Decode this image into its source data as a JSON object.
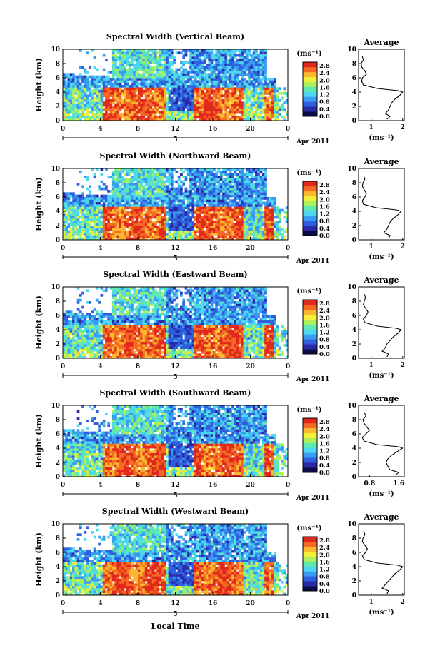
{
  "colorbar": {
    "unit": "(ms⁻¹)",
    "ticks": [
      "0.0",
      "0.4",
      "0.8",
      "1.2",
      "1.6",
      "2.0",
      "2.4",
      "2.8"
    ],
    "colors": [
      "#0b0b4a",
      "#2a2aa8",
      "#2f5fdc",
      "#3a9cf0",
      "#4ed8f0",
      "#5fe8b0",
      "#aef05a",
      "#f4f03a",
      "#f8b830",
      "#f46a24",
      "#e0281c"
    ]
  },
  "common": {
    "xticks": [
      "0",
      "4",
      "8",
      "12",
      "16",
      "20",
      "0"
    ],
    "date_mark": "5",
    "date_label": "Apr 2011",
    "ylabel": "Height (km)",
    "yticks": [
      "0",
      "2",
      "4",
      "6",
      "8",
      "10"
    ],
    "avg_title": "Average",
    "avg_unit": "(ms⁻¹)",
    "xlabel": "Local Time"
  },
  "panels": [
    {
      "title": "Spectral Width (Vertical Beam)",
      "avg_xticks": [
        "1",
        "2"
      ]
    },
    {
      "title": "Spectral Width (Northward Beam)",
      "avg_xticks": [
        "1",
        "2"
      ]
    },
    {
      "title": "Spectral Width (Eastward Beam)",
      "avg_xticks": [
        "1",
        "2"
      ]
    },
    {
      "title": "Spectral Width (Southward Beam)",
      "avg_xticks": [
        "0.8",
        "1.6"
      ]
    },
    {
      "title": "Spectral Width (Westward Beam)",
      "avg_xticks": [
        "1",
        "2"
      ]
    }
  ],
  "chart_data": [
    {
      "type": "heatmap",
      "title": "Spectral Width (Vertical Beam)",
      "xlabel": "",
      "ylabel": "Height (km)",
      "xlim": [
        0,
        24
      ],
      "ylim": [
        0,
        10
      ],
      "colorbar_range": [
        0,
        3.0
      ],
      "average_profile": {
        "title": "Average",
        "xlabel": "(ms⁻¹)",
        "xlim": [
          0.6,
          2.05
        ],
        "height_km": [
          0.2,
          0.6,
          1.0,
          1.5,
          2.0,
          2.5,
          3.0,
          3.5,
          4.0,
          4.2,
          4.5,
          5.0,
          5.5,
          6.0,
          6.5,
          7.0,
          7.5,
          8.0,
          8.5,
          9.0
        ],
        "width": [
          1.5,
          1.6,
          1.45,
          1.55,
          1.6,
          1.65,
          1.75,
          1.9,
          2.0,
          1.85,
          1.2,
          0.75,
          0.7,
          0.72,
          0.85,
          0.8,
          0.7,
          0.68,
          0.75,
          0.72
        ]
      }
    },
    {
      "type": "heatmap",
      "title": "Spectral Width (Northward Beam)",
      "xlabel": "",
      "ylabel": "Height (km)",
      "xlim": [
        0,
        24
      ],
      "ylim": [
        0,
        10
      ],
      "colorbar_range": [
        0,
        3.0
      ],
      "average_profile": {
        "title": "Average",
        "xlabel": "(ms⁻¹)",
        "xlim": [
          0.6,
          2.05
        ],
        "height_km": [
          0.2,
          0.6,
          1.0,
          1.5,
          2.0,
          2.5,
          3.0,
          3.5,
          4.0,
          4.2,
          4.5,
          5.0,
          5.5,
          6.0,
          6.5,
          7.0,
          7.5,
          8.0,
          8.5,
          9.0
        ],
        "width": [
          1.55,
          1.6,
          1.4,
          1.5,
          1.55,
          1.6,
          1.7,
          1.85,
          1.95,
          1.8,
          1.15,
          0.75,
          0.72,
          0.8,
          0.85,
          0.78,
          0.72,
          0.74,
          0.8,
          0.76
        ]
      }
    },
    {
      "type": "heatmap",
      "title": "Spectral Width (Eastward Beam)",
      "xlabel": "",
      "ylabel": "Height (km)",
      "xlim": [
        0,
        24
      ],
      "ylim": [
        0,
        10
      ],
      "colorbar_range": [
        0,
        3.0
      ],
      "average_profile": {
        "title": "Average",
        "xlabel": "(ms⁻¹)",
        "xlim": [
          0.6,
          2.05
        ],
        "height_km": [
          0.2,
          0.6,
          1.0,
          1.5,
          2.0,
          2.5,
          3.0,
          3.5,
          4.0,
          4.2,
          4.5,
          5.0,
          5.5,
          6.0,
          6.5,
          7.0,
          7.5,
          8.0,
          8.5,
          9.0
        ],
        "width": [
          1.5,
          1.55,
          1.35,
          1.45,
          1.5,
          1.6,
          1.7,
          1.85,
          1.95,
          1.8,
          1.2,
          0.8,
          0.75,
          0.85,
          0.9,
          0.82,
          0.75,
          0.78,
          0.82,
          0.78
        ]
      }
    },
    {
      "type": "heatmap",
      "title": "Spectral Width (Southward Beam)",
      "xlabel": "",
      "ylabel": "Height (km)",
      "xlim": [
        0,
        24
      ],
      "ylim": [
        0,
        10
      ],
      "colorbar_range": [
        0,
        3.0
      ],
      "average_profile": {
        "title": "Average",
        "xlabel": "(ms⁻¹)",
        "xlim": [
          0.5,
          1.75
        ],
        "height_km": [
          0.2,
          0.6,
          1.0,
          1.5,
          2.0,
          2.5,
          3.0,
          3.5,
          4.0,
          4.2,
          4.5,
          5.0,
          5.5,
          6.0,
          6.5,
          7.0,
          7.5,
          8.0,
          8.5,
          9.0
        ],
        "width": [
          1.5,
          1.6,
          1.35,
          1.3,
          1.25,
          1.3,
          1.4,
          1.55,
          1.7,
          1.6,
          1.0,
          0.65,
          0.6,
          0.7,
          0.8,
          0.72,
          0.65,
          0.62,
          0.7,
          0.66
        ]
      }
    },
    {
      "type": "heatmap",
      "title": "Spectral Width (Westward Beam)",
      "xlabel": "Local Time",
      "ylabel": "Height (km)",
      "xlim": [
        0,
        24
      ],
      "ylim": [
        0,
        10
      ],
      "colorbar_range": [
        0,
        3.0
      ],
      "average_profile": {
        "title": "Average",
        "xlabel": "(ms⁻¹)",
        "xlim": [
          0.6,
          2.05
        ],
        "height_km": [
          0.2,
          0.6,
          1.0,
          1.5,
          2.0,
          2.5,
          3.0,
          3.5,
          4.0,
          4.2,
          4.5,
          5.0,
          5.5,
          6.0,
          6.5,
          7.0,
          7.5,
          8.0,
          8.5,
          9.0
        ],
        "width": [
          1.5,
          1.55,
          1.35,
          1.45,
          1.55,
          1.65,
          1.75,
          1.9,
          2.0,
          1.85,
          1.2,
          0.78,
          0.72,
          0.82,
          0.88,
          0.8,
          0.72,
          0.74,
          0.8,
          0.76
        ]
      }
    }
  ]
}
